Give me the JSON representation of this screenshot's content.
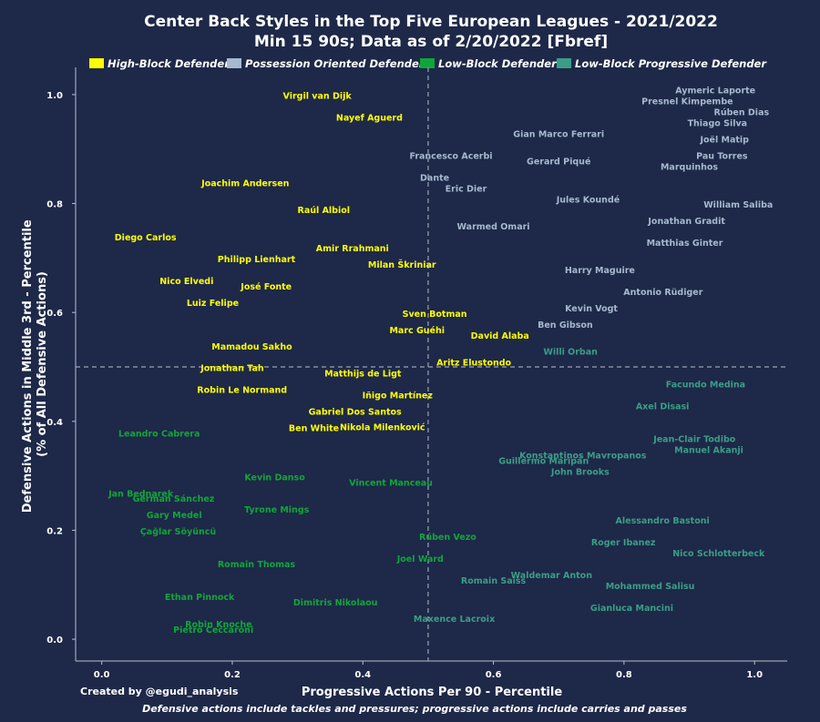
{
  "title": "Center Back Styles in the Top Five European Leagues - 2021/2022",
  "subtitle": "Min 15 90s; Data as of 2/20/2022 [Fbref]",
  "credit": "Created by @egudi_analysis",
  "footnote": "Defensive actions include tackles and pressures; progressive actions include carries and passes",
  "colors": {
    "background": "#1e2848",
    "High-Block Defender": "#ffff00",
    "Possession Oriented Defender": "#a6b9cf",
    "Low-Block Defender": "#0fa63a",
    "Low-Block Progressive Defender": "#3a9e86"
  },
  "chart_data": {
    "type": "scatter",
    "xlabel": "Progressive Actions Per 90 - Percentile",
    "ylabel": "Defensive Actions in Middle 3rd - Percentile\n(% of All Defensive Actions)",
    "xlim": [
      -0.04,
      1.05
    ],
    "ylim": [
      -0.04,
      1.05
    ],
    "xticks": [
      "0.0",
      "0.2",
      "0.4",
      "0.6",
      "0.8",
      "1.0"
    ],
    "yticks": [
      "0.0",
      "0.2",
      "0.4",
      "0.6",
      "0.8",
      "1.0"
    ],
    "reference_lines": {
      "x": 0.5,
      "y": 0.5
    },
    "grid": false,
    "legend_position": "top",
    "series": [
      {
        "name": "High-Block Defender",
        "points": [
          {
            "label": "Virgil van Dijk",
            "x": 0.33,
            "y": 0.998
          },
          {
            "label": "Nayef Aguerd",
            "x": 0.41,
            "y": 0.958
          },
          {
            "label": "Joachim Andersen",
            "x": 0.22,
            "y": 0.838
          },
          {
            "label": "Raúl Albiol",
            "x": 0.34,
            "y": 0.788
          },
          {
            "label": "Diego Carlos",
            "x": 0.067,
            "y": 0.738
          },
          {
            "label": "Amir Rrahmani",
            "x": 0.384,
            "y": 0.718
          },
          {
            "label": "Philipp Lienhart",
            "x": 0.237,
            "y": 0.698
          },
          {
            "label": "Milan Škriniar",
            "x": 0.46,
            "y": 0.688
          },
          {
            "label": "Nico Elvedi",
            "x": 0.13,
            "y": 0.658
          },
          {
            "label": "José Fonte",
            "x": 0.252,
            "y": 0.648
          },
          {
            "label": "Luiz Felipe",
            "x": 0.17,
            "y": 0.618
          },
          {
            "label": "Sven Botman",
            "x": 0.51,
            "y": 0.598
          },
          {
            "label": "Marc Guéhi",
            "x": 0.483,
            "y": 0.568
          },
          {
            "label": "David Alaba",
            "x": 0.61,
            "y": 0.558
          },
          {
            "label": "Mamadou Sakho",
            "x": 0.23,
            "y": 0.538
          },
          {
            "label": "Aritz Elustondo",
            "x": 0.57,
            "y": 0.508
          },
          {
            "label": "Jonathan Tah",
            "x": 0.2,
            "y": 0.498
          },
          {
            "label": "Matthijs de Ligt",
            "x": 0.4,
            "y": 0.488
          },
          {
            "label": "Robin Le Normand",
            "x": 0.215,
            "y": 0.458
          },
          {
            "label": "Iñigo Martínez",
            "x": 0.453,
            "y": 0.448
          },
          {
            "label": "Gabriel Dos Santos",
            "x": 0.388,
            "y": 0.418
          },
          {
            "label": "Ben White",
            "x": 0.325,
            "y": 0.388
          },
          {
            "label": "Nikola Milenković",
            "x": 0.43,
            "y": 0.39
          }
        ]
      },
      {
        "name": "Possession Oriented Defender",
        "points": [
          {
            "label": "Aymeric Laporte",
            "x": 0.94,
            "y": 1.008
          },
          {
            "label": "Presnel Kimpembe",
            "x": 0.897,
            "y": 0.988
          },
          {
            "label": "Rúben Dias",
            "x": 0.98,
            "y": 0.968
          },
          {
            "label": "Thiago Silva",
            "x": 0.943,
            "y": 0.948
          },
          {
            "label": "Gian Marco Ferrari",
            "x": 0.7,
            "y": 0.928
          },
          {
            "label": "Joël Matip",
            "x": 0.954,
            "y": 0.918
          },
          {
            "label": "Francesco Acerbi",
            "x": 0.535,
            "y": 0.888
          },
          {
            "label": "Pau Torres",
            "x": 0.95,
            "y": 0.888
          },
          {
            "label": "Gerard Piqué",
            "x": 0.7,
            "y": 0.878
          },
          {
            "label": "Marquinhos",
            "x": 0.9,
            "y": 0.868
          },
          {
            "label": "Dante",
            "x": 0.51,
            "y": 0.848
          },
          {
            "label": "Eric Dier",
            "x": 0.558,
            "y": 0.828
          },
          {
            "label": "Jules Koundé",
            "x": 0.745,
            "y": 0.808
          },
          {
            "label": "William Saliba",
            "x": 0.975,
            "y": 0.798
          },
          {
            "label": "Jonathan Gradit",
            "x": 0.896,
            "y": 0.768
          },
          {
            "label": "Warmed Omari",
            "x": 0.6,
            "y": 0.758
          },
          {
            "label": "Matthias Ginter",
            "x": 0.893,
            "y": 0.728
          },
          {
            "label": "Harry Maguire",
            "x": 0.763,
            "y": 0.678
          },
          {
            "label": "Antonio Rüdiger",
            "x": 0.86,
            "y": 0.638
          },
          {
            "label": "Kevin Vogt",
            "x": 0.75,
            "y": 0.608
          },
          {
            "label": "Ben Gibson",
            "x": 0.71,
            "y": 0.578
          }
        ]
      },
      {
        "name": "Low-Block Defender",
        "points": [
          {
            "label": "Leandro Cabrera",
            "x": 0.088,
            "y": 0.378
          },
          {
            "label": "Kevin Danso",
            "x": 0.265,
            "y": 0.298
          },
          {
            "label": "Vincent Manceau",
            "x": 0.443,
            "y": 0.288
          },
          {
            "label": "Jan Bednarek",
            "x": 0.06,
            "y": 0.268
          },
          {
            "label": "German Sánchez",
            "x": 0.11,
            "y": 0.258
          },
          {
            "label": "Tyrone Mings",
            "x": 0.268,
            "y": 0.238
          },
          {
            "label": "Gary Medel",
            "x": 0.111,
            "y": 0.228
          },
          {
            "label": "Çağlar Söyüncü",
            "x": 0.117,
            "y": 0.198
          },
          {
            "label": "Rúben Vezo",
            "x": 0.53,
            "y": 0.188
          },
          {
            "label": "Joel Ward",
            "x": 0.488,
            "y": 0.148
          },
          {
            "label": "Romain Thomas",
            "x": 0.237,
            "y": 0.138
          },
          {
            "label": "Ethan Pinnock",
            "x": 0.15,
            "y": 0.078
          },
          {
            "label": "Dimitris Nikolaou",
            "x": 0.358,
            "y": 0.068
          },
          {
            "label": "Robin Knoche",
            "x": 0.179,
            "y": 0.028
          },
          {
            "label": "Pietro Ceccaroni",
            "x": 0.171,
            "y": 0.018
          }
        ]
      },
      {
        "name": "Low-Block Progressive Defender",
        "points": [
          {
            "label": "Willi Orban",
            "x": 0.718,
            "y": 0.528
          },
          {
            "label": "Facundo Medina",
            "x": 0.925,
            "y": 0.468
          },
          {
            "label": "Axel Disasi",
            "x": 0.859,
            "y": 0.428
          },
          {
            "label": "Jean-Clair Todibo",
            "x": 0.908,
            "y": 0.368
          },
          {
            "label": "Manuel Akanji",
            "x": 0.93,
            "y": 0.348
          },
          {
            "label": "Konstantinos Mavropanos",
            "x": 0.737,
            "y": 0.338
          },
          {
            "label": "Guillermo Maripán",
            "x": 0.677,
            "y": 0.328
          },
          {
            "label": "John Brooks",
            "x": 0.733,
            "y": 0.308
          },
          {
            "label": "Alessandro Bastoni",
            "x": 0.859,
            "y": 0.218
          },
          {
            "label": "Roger Ibanez",
            "x": 0.799,
            "y": 0.178
          },
          {
            "label": "Nico Schlotterbeck",
            "x": 0.945,
            "y": 0.158
          },
          {
            "label": "Waldemar Anton",
            "x": 0.689,
            "y": 0.118
          },
          {
            "label": "Romain Saïss",
            "x": 0.6,
            "y": 0.108
          },
          {
            "label": "Mohammed Salisu",
            "x": 0.84,
            "y": 0.098
          },
          {
            "label": "Gianluca Mancini",
            "x": 0.812,
            "y": 0.058
          },
          {
            "label": "Maxence Lacroix",
            "x": 0.54,
            "y": 0.038
          }
        ]
      }
    ]
  }
}
